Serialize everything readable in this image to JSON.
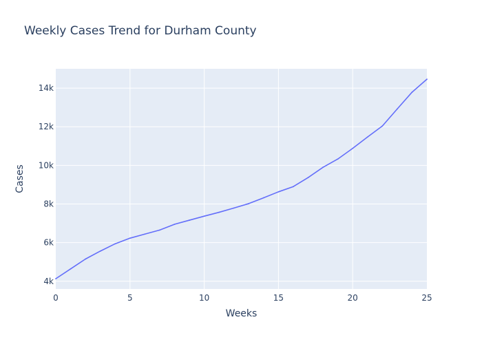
{
  "chart_data": {
    "type": "line",
    "title": "Weekly Cases Trend for Durham County",
    "xlabel": "Weeks",
    "ylabel": "Cases",
    "xlim": [
      0,
      25
    ],
    "ylim": [
      3600,
      15000
    ],
    "x_ticks": [
      {
        "value": 0,
        "label": "0"
      },
      {
        "value": 5,
        "label": "5"
      },
      {
        "value": 10,
        "label": "10"
      },
      {
        "value": 15,
        "label": "15"
      },
      {
        "value": 20,
        "label": "20"
      },
      {
        "value": 25,
        "label": "25"
      }
    ],
    "y_ticks": [
      {
        "value": 4000,
        "label": "4k"
      },
      {
        "value": 6000,
        "label": "6k"
      },
      {
        "value": 8000,
        "label": "8k"
      },
      {
        "value": 10000,
        "label": "10k"
      },
      {
        "value": 12000,
        "label": "12k"
      },
      {
        "value": 14000,
        "label": "14k"
      }
    ],
    "grid": true,
    "legend": false,
    "colors": {
      "plot_background": "#e5ecf6",
      "grid": "#ffffff",
      "line": "#636efa",
      "text": "#2a3f5f"
    },
    "series": [
      {
        "x": [
          0,
          1,
          2,
          3,
          4,
          5,
          6,
          7,
          8,
          9,
          10,
          11,
          12,
          13,
          14,
          15,
          16,
          17,
          18,
          19,
          20,
          21,
          22,
          23,
          24,
          25
        ],
        "values": [
          4130,
          4640,
          5150,
          5560,
          5940,
          6230,
          6440,
          6650,
          6950,
          7160,
          7370,
          7570,
          7790,
          8020,
          8320,
          8630,
          8900,
          9370,
          9900,
          10330,
          10880,
          11470,
          12040,
          12920,
          13790,
          14460
        ]
      }
    ]
  }
}
